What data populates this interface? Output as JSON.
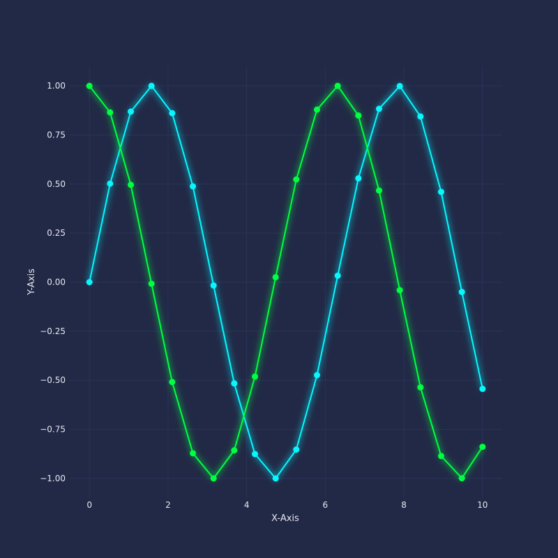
{
  "chart_data": {
    "type": "line",
    "xlabel": "X-Axis",
    "ylabel": "Y-Axis",
    "xlim": [
      -0.5,
      10.5
    ],
    "ylim": [
      -1.1,
      1.1
    ],
    "grid": true,
    "x_ticks": [
      0,
      2,
      4,
      6,
      8,
      10
    ],
    "x_tick_labels": [
      "0",
      "2",
      "4",
      "6",
      "8",
      "10"
    ],
    "y_ticks": [
      1.0,
      0.75,
      0.5,
      0.25,
      0.0,
      -0.25,
      -0.5,
      -0.75,
      -1.0
    ],
    "y_tick_labels": [
      "1.00",
      "0.75",
      "0.50",
      "0.25",
      "0.00",
      "−0.25",
      "−0.50",
      "−0.75",
      "−1.00"
    ],
    "x": [
      0.0,
      0.526,
      1.053,
      1.579,
      2.105,
      2.632,
      3.158,
      3.684,
      4.211,
      4.737,
      5.263,
      5.789,
      6.316,
      6.842,
      7.368,
      7.895,
      8.421,
      8.947,
      9.474,
      10.0
    ],
    "series": [
      {
        "color": "#08F7FE",
        "values": [
          0.0,
          0.502,
          0.869,
          1.0,
          0.861,
          0.488,
          -0.017,
          -0.516,
          -0.876,
          -1.0,
          -0.853,
          -0.474,
          0.033,
          0.529,
          0.883,
          0.999,
          0.844,
          0.46,
          -0.05,
          -0.544
        ]
      },
      {
        "color": "#00FF41",
        "values": [
          1.0,
          0.865,
          0.496,
          -0.008,
          -0.509,
          -0.872,
          -1.0,
          -0.857,
          -0.481,
          0.025,
          0.523,
          0.879,
          1.0,
          0.849,
          0.467,
          -0.041,
          -0.536,
          -0.886,
          -0.999,
          -0.839
        ]
      }
    ]
  },
  "colors": {
    "background": "#212946",
    "grid": "#2A3459",
    "text": "#e8e8f0"
  }
}
